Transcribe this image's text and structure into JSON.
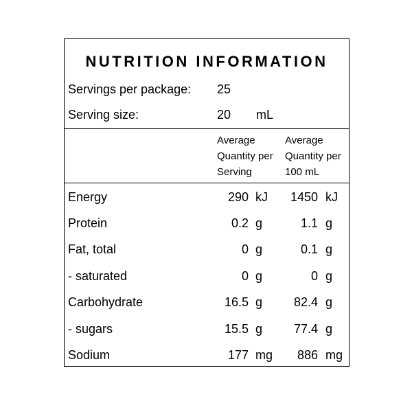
{
  "title": "NUTRITION INFORMATION",
  "servings_per_package": {
    "label": "Servings per package:",
    "value": "25"
  },
  "serving_size": {
    "label": "Serving size:",
    "value": "20",
    "unit": "mL"
  },
  "columns": {
    "per_serving": [
      "Average",
      "Quantity per",
      "Serving"
    ],
    "per_100": [
      "Average",
      "Quantity per",
      "100 mL"
    ]
  },
  "rows": [
    {
      "label": "Energy",
      "per_serving": "290",
      "per_serving_unit": "kJ",
      "per_100": "1450",
      "per_100_unit": "kJ"
    },
    {
      "label": "Protein",
      "per_serving": "0.2",
      "per_serving_unit": "g",
      "per_100": "1.1",
      "per_100_unit": "g"
    },
    {
      "label": "Fat, total",
      "per_serving": "0",
      "per_serving_unit": "g",
      "per_100": "0.1",
      "per_100_unit": "g"
    },
    {
      "label": "- saturated",
      "per_serving": "0",
      "per_serving_unit": "g",
      "per_100": "0",
      "per_100_unit": "g"
    },
    {
      "label": "Carbohydrate",
      "per_serving": "16.5",
      "per_serving_unit": "g",
      "per_100": "82.4",
      "per_100_unit": "g"
    },
    {
      "label": "- sugars",
      "per_serving": "15.5",
      "per_serving_unit": "g",
      "per_100": "77.4",
      "per_100_unit": "g"
    },
    {
      "label": "Sodium",
      "per_serving": "177",
      "per_serving_unit": "mg",
      "per_100": "886",
      "per_100_unit": "mg"
    }
  ]
}
